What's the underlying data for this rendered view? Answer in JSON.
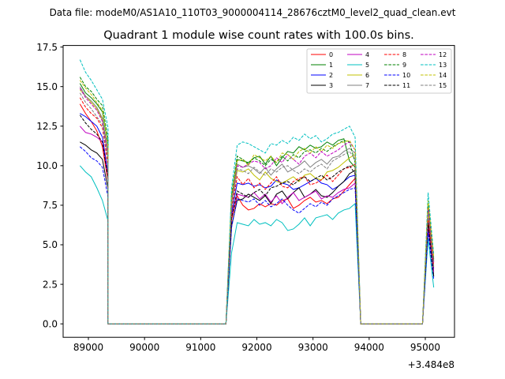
{
  "suptitle": "Data file: modeM0/AS1A10_110T03_9000004114_28676cztM0_level2_quad_clean.evt",
  "chart_data": {
    "type": "line",
    "title": "Quadrant 1 module wise count rates with 100.0s bins.",
    "xlabel": "",
    "ylabel": "",
    "x_offset_label": "+3.484e8",
    "xlim": [
      88550,
      95520
    ],
    "ylim": [
      -0.85,
      17.6
    ],
    "x_ticks": [
      89000,
      90000,
      91000,
      92000,
      93000,
      94000,
      95000
    ],
    "x_tick_labels": [
      "89000",
      "90000",
      "91000",
      "92000",
      "93000",
      "94000",
      "95000"
    ],
    "y_ticks": [
      0.0,
      2.5,
      5.0,
      7.5,
      10.0,
      12.5,
      15.0,
      17.5
    ],
    "y_tick_labels": [
      "0.0",
      "2.5",
      "5.0",
      "7.5",
      "10.0",
      "12.5",
      "15.0",
      "17.5"
    ],
    "legend_position": "top-right",
    "segments": [
      {
        "start": 88850,
        "count": 6
      },
      {
        "start": 91550,
        "count": 23
      },
      {
        "start": 95050,
        "count": 2
      }
    ],
    "zero_gaps": [
      [
        89350,
        91450
      ],
      [
        93850,
        94950
      ]
    ],
    "series": [
      {
        "name": "0",
        "color": "#ff0000",
        "dash": "solid",
        "values": [
          13.9,
          13.3,
          12.8,
          12.2,
          11.2,
          9.0,
          6.6,
          8.1,
          7.5,
          7.2,
          7.3,
          7.6,
          7.4,
          7.6,
          7.5,
          7.8,
          7.9,
          7.3,
          7.5,
          7.8,
          8.0,
          7.7,
          7.8,
          7.6,
          7.9,
          8.0,
          8.4,
          8.8,
          9.2,
          6.5,
          3.9
        ]
      },
      {
        "name": "1",
        "color": "#008000",
        "dash": "solid",
        "values": [
          15.2,
          14.6,
          14.3,
          13.9,
          13.4,
          11.3,
          8.0,
          10.4,
          10.3,
          10.2,
          10.5,
          10.6,
          10.1,
          10.6,
          10.0,
          10.5,
          10.9,
          10.8,
          11.2,
          11.0,
          11.3,
          11.1,
          11.2,
          11.5,
          11.3,
          11.6,
          11.7,
          10.3,
          9.9,
          7.4,
          4.1
        ]
      },
      {
        "name": "2",
        "color": "#0000ff",
        "dash": "solid",
        "values": [
          13.3,
          13.1,
          12.8,
          12.5,
          11.8,
          9.5,
          7.0,
          8.9,
          8.8,
          8.9,
          8.7,
          8.8,
          8.6,
          8.7,
          9.1,
          8.9,
          8.8,
          8.5,
          8.6,
          8.8,
          9.0,
          9.2,
          8.9,
          8.8,
          8.5,
          8.7,
          9.0,
          9.3,
          9.4,
          6.0,
          3.5
        ]
      },
      {
        "name": "3",
        "color": "#000000",
        "dash": "solid",
        "values": [
          11.5,
          11.3,
          11.0,
          10.8,
          10.4,
          8.5,
          6.2,
          7.8,
          7.9,
          8.2,
          8.0,
          7.8,
          8.1,
          7.6,
          8.2,
          8.4,
          7.9,
          8.3,
          8.6,
          8.0,
          8.2,
          8.5,
          8.1,
          8.0,
          8.3,
          8.7,
          9.0,
          9.5,
          9.7,
          6.3,
          3.0
        ]
      },
      {
        "name": "4",
        "color": "#c000c0",
        "dash": "solid",
        "values": [
          12.5,
          12.1,
          12.0,
          11.8,
          11.5,
          9.3,
          6.8,
          8.2,
          8.1,
          8.0,
          8.3,
          7.9,
          8.2,
          7.7,
          8.1,
          7.6,
          8.0,
          8.3,
          7.8,
          8.0,
          8.2,
          8.4,
          7.9,
          8.1,
          8.0,
          8.3,
          8.5,
          8.6,
          8.9,
          6.1,
          3.3
        ]
      },
      {
        "name": "5",
        "color": "#00c0c0",
        "dash": "solid",
        "values": [
          10.0,
          9.6,
          9.3,
          8.6,
          7.8,
          6.5,
          4.5,
          6.4,
          6.3,
          6.2,
          6.6,
          6.3,
          6.4,
          6.2,
          6.6,
          6.4,
          5.9,
          6.0,
          6.3,
          6.7,
          6.2,
          6.7,
          6.8,
          6.9,
          6.6,
          7.0,
          7.2,
          7.3,
          7.6,
          5.4,
          2.3
        ]
      },
      {
        "name": "6",
        "color": "#c0c000",
        "dash": "solid",
        "values": [
          14.8,
          14.4,
          14.0,
          13.6,
          12.9,
          10.5,
          7.5,
          9.7,
          9.6,
          9.8,
          9.4,
          9.1,
          9.6,
          9.2,
          9.0,
          8.9,
          9.1,
          9.3,
          9.0,
          9.4,
          9.5,
          9.2,
          9.1,
          9.6,
          9.7,
          9.9,
          10.2,
          10.5,
          10.7,
          7.2,
          3.6
        ]
      },
      {
        "name": "7",
        "color": "#808080",
        "dash": "solid",
        "values": [
          15.0,
          14.4,
          14.1,
          13.7,
          13.0,
          10.9,
          7.7,
          10.1,
          9.9,
          10.0,
          9.8,
          9.5,
          9.9,
          9.4,
          9.8,
          10.1,
          9.6,
          9.8,
          10.0,
          10.3,
          9.9,
          10.2,
          10.4,
          10.1,
          10.5,
          10.6,
          10.9,
          11.1,
          10.8,
          7.5,
          3.9
        ]
      },
      {
        "name": "8",
        "color": "#ff0000",
        "dash": "dashed",
        "values": [
          14.3,
          13.7,
          13.3,
          13.0,
          12.4,
          10.0,
          7.2,
          9.3,
          8.8,
          9.2,
          8.6,
          8.9,
          8.5,
          8.9,
          9.3,
          8.7,
          8.6,
          9.0,
          9.2,
          9.3,
          8.8,
          8.9,
          9.1,
          9.4,
          9.0,
          9.4,
          9.8,
          9.9,
          10.1,
          6.7,
          3.7
        ]
      },
      {
        "name": "9",
        "color": "#008000",
        "dash": "dashed",
        "values": [
          15.6,
          15.0,
          14.7,
          14.2,
          13.8,
          11.7,
          8.2,
          10.6,
          10.4,
          10.1,
          10.5,
          10.3,
          10.0,
          10.4,
          10.2,
          10.6,
          10.3,
          10.7,
          10.5,
          10.9,
          11.0,
          10.8,
          11.1,
          10.9,
          11.2,
          11.4,
          11.6,
          11.5,
          10.2,
          7.6,
          4.0
        ]
      },
      {
        "name": "10",
        "color": "#0000ff",
        "dash": "dashed",
        "values": [
          11.2,
          10.9,
          10.5,
          10.3,
          9.9,
          8.0,
          6.1,
          7.9,
          7.8,
          7.7,
          7.9,
          7.5,
          7.8,
          7.4,
          7.6,
          7.9,
          7.5,
          7.2,
          7.0,
          7.3,
          7.6,
          7.4,
          7.7,
          7.5,
          7.9,
          8.1,
          8.3,
          8.5,
          8.6,
          5.8,
          2.8
        ]
      },
      {
        "name": "11",
        "color": "#000000",
        "dash": "dashed",
        "values": [
          13.2,
          12.7,
          12.3,
          12.0,
          11.5,
          9.2,
          6.7,
          8.4,
          8.2,
          8.0,
          8.3,
          8.5,
          8.1,
          8.6,
          8.7,
          8.9,
          9.0,
          8.8,
          9.1,
          9.3,
          9.0,
          9.2,
          9.4,
          9.1,
          9.3,
          9.6,
          9.8,
          10.0,
          9.5,
          6.4,
          3.0
        ]
      },
      {
        "name": "12",
        "color": "#c000c0",
        "dash": "dashed",
        "values": [
          14.9,
          14.3,
          13.9,
          13.5,
          12.8,
          10.6,
          7.6,
          10.0,
          9.9,
          10.1,
          10.3,
          10.2,
          9.8,
          10.0,
          10.5,
          10.2,
          10.7,
          10.4,
          10.1,
          10.6,
          10.8,
          10.5,
          10.9,
          10.6,
          10.8,
          11.0,
          11.3,
          11.5,
          11.0,
          7.3,
          3.8
        ]
      },
      {
        "name": "13",
        "color": "#00c0c0",
        "dash": "dashed",
        "values": [
          16.7,
          15.9,
          15.4,
          14.8,
          14.2,
          12.4,
          8.6,
          11.3,
          11.5,
          11.4,
          11.2,
          11.0,
          10.8,
          11.4,
          11.3,
          11.6,
          11.4,
          11.8,
          11.6,
          12.0,
          11.7,
          11.9,
          11.5,
          11.7,
          12.0,
          12.1,
          12.3,
          12.5,
          11.8,
          8.3,
          4.4
        ]
      },
      {
        "name": "14",
        "color": "#c0c000",
        "dash": "dashed",
        "values": [
          15.4,
          14.9,
          14.5,
          14.0,
          13.5,
          11.2,
          8.0,
          10.3,
          10.4,
          10.0,
          10.7,
          10.5,
          10.3,
          10.6,
          10.2,
          10.8,
          10.7,
          10.4,
          10.9,
          11.1,
          10.8,
          11.2,
          10.9,
          11.3,
          11.1,
          11.4,
          11.5,
          11.6,
          11.0,
          7.8,
          4.2
        ]
      },
      {
        "name": "15",
        "color": "#808080",
        "dash": "dashed",
        "values": [
          14.6,
          14.0,
          13.6,
          13.1,
          12.6,
          10.3,
          7.4,
          9.8,
          9.7,
          9.5,
          9.9,
          9.6,
          9.4,
          9.8,
          9.6,
          9.9,
          10.0,
          9.7,
          9.5,
          9.8,
          9.6,
          9.9,
          10.1,
          9.8,
          10.3,
          10.5,
          10.7,
          10.9,
          10.4,
          7.0,
          3.6
        ]
      }
    ]
  }
}
